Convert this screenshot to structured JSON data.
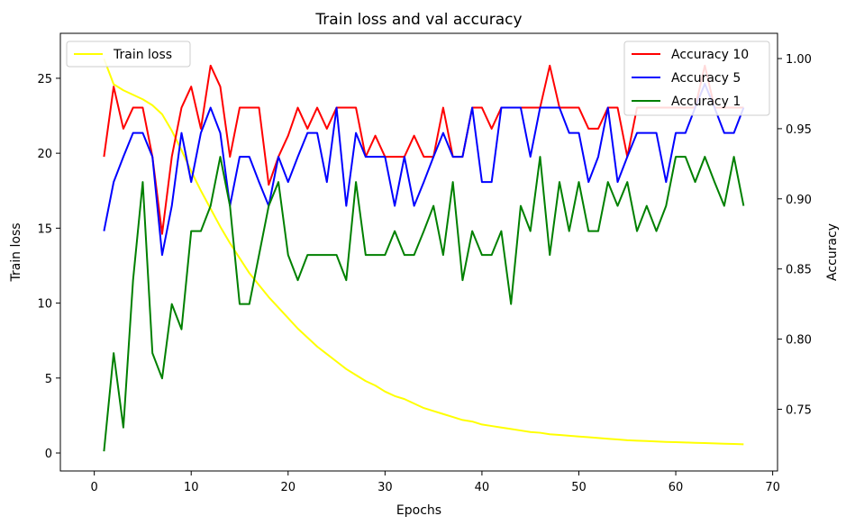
{
  "chart_data": {
    "type": "line",
    "title": "Train loss and val accuracy",
    "xlabel": "Epochs",
    "ylabel_left": "Train loss",
    "ylabel_right": "Accuracy",
    "xlim": [
      -3.5,
      70.5
    ],
    "ylim_left": [
      -1.2,
      28
    ],
    "ylim_right": [
      0.706,
      1.018
    ],
    "xticks": [
      0,
      10,
      20,
      30,
      40,
      50,
      60,
      70
    ],
    "yticks_left": [
      0,
      5,
      10,
      15,
      20,
      25
    ],
    "yticks_right": [
      0.75,
      0.8,
      0.85,
      0.9,
      0.95,
      1.0
    ],
    "yticks_right_labels": [
      "0.75",
      "0.80",
      "0.85",
      "0.90",
      "0.95",
      "1.00"
    ],
    "grid": false,
    "legend_left": {
      "placement": "top-left",
      "entries": [
        {
          "name": "Train loss",
          "color": "#ffff00"
        }
      ]
    },
    "legend_right": {
      "placement": "top-right",
      "entries": [
        {
          "name": "Accuracy 10",
          "color": "#ff0000"
        },
        {
          "name": "Accuracy 5",
          "color": "#0000ff"
        },
        {
          "name": "Accuracy 1",
          "color": "#008000"
        }
      ]
    },
    "x": [
      1,
      2,
      3,
      4,
      5,
      6,
      7,
      8,
      9,
      10,
      11,
      12,
      13,
      14,
      15,
      16,
      17,
      18,
      19,
      20,
      21,
      22,
      23,
      24,
      25,
      26,
      27,
      28,
      29,
      30,
      31,
      32,
      33,
      34,
      35,
      36,
      37,
      38,
      39,
      40,
      41,
      42,
      43,
      44,
      45,
      46,
      47,
      48,
      49,
      50,
      51,
      52,
      53,
      54,
      55,
      56,
      57,
      58,
      59,
      60,
      61,
      62,
      63,
      64,
      65,
      66,
      67
    ],
    "series": [
      {
        "name": "Train loss",
        "axis": "left",
        "color": "#ffff00",
        "values": [
          26.3,
          24.6,
          24.2,
          23.9,
          23.6,
          23.2,
          22.6,
          21.5,
          20.2,
          18.8,
          17.5,
          16.3,
          15.1,
          14.0,
          13.0,
          12.0,
          11.2,
          10.4,
          9.7,
          9.0,
          8.3,
          7.7,
          7.1,
          6.6,
          6.1,
          5.6,
          5.2,
          4.8,
          4.5,
          4.1,
          3.8,
          3.6,
          3.3,
          3.0,
          2.8,
          2.6,
          2.4,
          2.2,
          2.1,
          1.9,
          1.8,
          1.7,
          1.6,
          1.5,
          1.4,
          1.35,
          1.25,
          1.2,
          1.15,
          1.1,
          1.05,
          1.0,
          0.95,
          0.9,
          0.85,
          0.82,
          0.8,
          0.77,
          0.74,
          0.72,
          0.7,
          0.68,
          0.66,
          0.64,
          0.62,
          0.6,
          0.58
        ]
      },
      {
        "name": "Accuracy 10",
        "axis": "right",
        "color": "#ff0000",
        "values": [
          0.93,
          0.98,
          0.95,
          0.965,
          0.965,
          0.93,
          0.875,
          0.93,
          0.965,
          0.98,
          0.95,
          0.995,
          0.98,
          0.93,
          0.965,
          0.965,
          0.965,
          0.91,
          0.93,
          0.945,
          0.965,
          0.95,
          0.965,
          0.95,
          0.965,
          0.965,
          0.965,
          0.93,
          0.945,
          0.93,
          0.93,
          0.93,
          0.945,
          0.93,
          0.93,
          0.965,
          0.93,
          0.93,
          0.965,
          0.965,
          0.95,
          0.965,
          0.965,
          0.965,
          0.965,
          0.965,
          0.995,
          0.965,
          0.965,
          0.965,
          0.95,
          0.95,
          0.965,
          0.965,
          0.93,
          0.965,
          0.965,
          0.965,
          0.965,
          0.965,
          0.965,
          0.965,
          0.995,
          0.965,
          0.965,
          0.965,
          0.965
        ]
      },
      {
        "name": "Accuracy 5",
        "axis": "right",
        "color": "#0000ff",
        "values": [
          0.877,
          0.912,
          0.93,
          0.947,
          0.947,
          0.93,
          0.86,
          0.895,
          0.947,
          0.912,
          0.947,
          0.965,
          0.947,
          0.895,
          0.93,
          0.93,
          0.912,
          0.895,
          0.93,
          0.912,
          0.93,
          0.947,
          0.947,
          0.912,
          0.965,
          0.895,
          0.947,
          0.93,
          0.93,
          0.93,
          0.895,
          0.93,
          0.895,
          0.912,
          0.93,
          0.947,
          0.93,
          0.93,
          0.965,
          0.912,
          0.912,
          0.965,
          0.965,
          0.965,
          0.93,
          0.965,
          0.965,
          0.965,
          0.947,
          0.947,
          0.912,
          0.93,
          0.965,
          0.912,
          0.93,
          0.947,
          0.947,
          0.947,
          0.912,
          0.947,
          0.947,
          0.965,
          0.982,
          0.965,
          0.947,
          0.947,
          0.965
        ]
      },
      {
        "name": "Accuracy 1",
        "axis": "right",
        "color": "#008000",
        "values": [
          0.72,
          0.79,
          0.737,
          0.842,
          0.912,
          0.79,
          0.772,
          0.825,
          0.807,
          0.877,
          0.877,
          0.895,
          0.93,
          0.895,
          0.825,
          0.825,
          0.86,
          0.895,
          0.912,
          0.86,
          0.842,
          0.86,
          0.86,
          0.86,
          0.86,
          0.842,
          0.912,
          0.86,
          0.86,
          0.86,
          0.877,
          0.86,
          0.86,
          0.877,
          0.895,
          0.86,
          0.912,
          0.842,
          0.877,
          0.86,
          0.86,
          0.877,
          0.825,
          0.895,
          0.877,
          0.93,
          0.86,
          0.912,
          0.877,
          0.912,
          0.877,
          0.877,
          0.912,
          0.895,
          0.912,
          0.877,
          0.895,
          0.877,
          0.895,
          0.93,
          0.93,
          0.912,
          0.93,
          0.912,
          0.895,
          0.93,
          0.895
        ]
      }
    ]
  }
}
